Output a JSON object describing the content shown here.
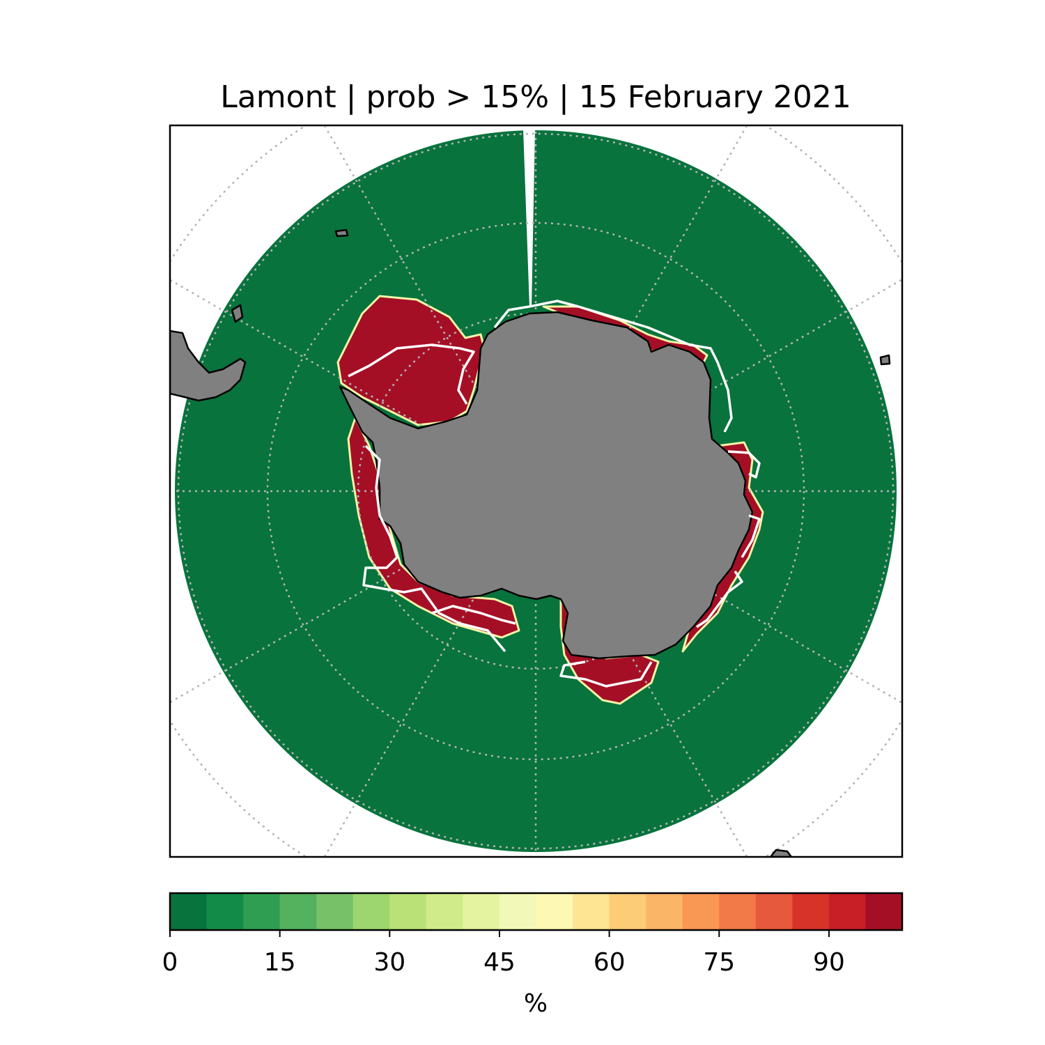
{
  "title": "Lamont | prob > 15% | 15 February 2021",
  "colors": {
    "ocean_low_prob": "#08733c",
    "ice_high_prob": "#a50f26",
    "land": "#808080",
    "observed_edge": "#ffffff",
    "gridline": "#b3b3b3"
  },
  "colorbar": {
    "unit_label": "%",
    "min": 0,
    "max": 100,
    "step": 5,
    "tick_values": [
      "0",
      "15",
      "30",
      "45",
      "60",
      "75",
      "90"
    ],
    "bin_colors": [
      "#08733c",
      "#138b48",
      "#2f9e52",
      "#54b15d",
      "#77c169",
      "#9dd56f",
      "#b9e178",
      "#d0ec8a",
      "#e3f39f",
      "#f2f9b8",
      "#fef8b5",
      "#fde594",
      "#fdcc77",
      "#fbb566",
      "#f99755",
      "#f17a48",
      "#e6593c",
      "#d73328",
      "#c81f26",
      "#a50f26"
    ]
  },
  "map": {
    "projection": "south-polar-stereographic",
    "icons": {
      "gridlines": "graticule-icon",
      "land": "land-mask-icon",
      "observed": "observed-ice-edge-icon"
    }
  }
}
